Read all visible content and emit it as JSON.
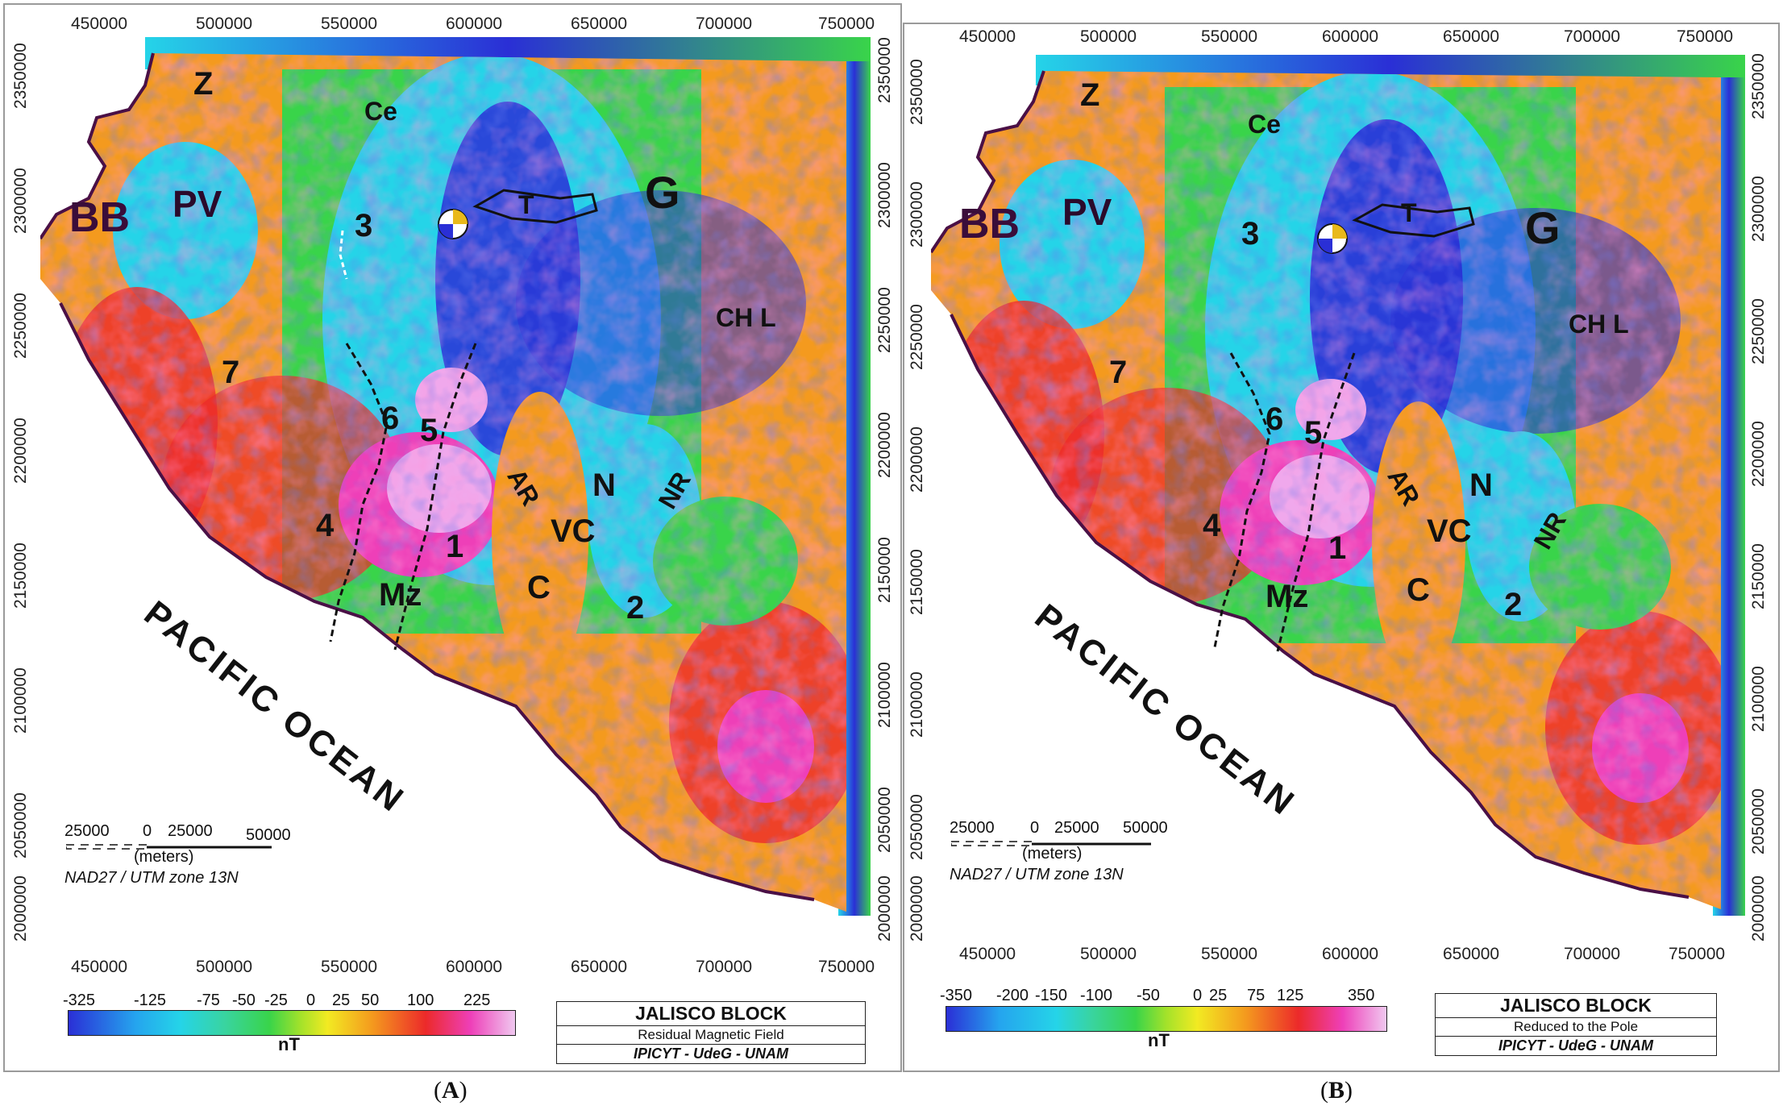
{
  "panels": [
    {
      "id": "A",
      "letter": "A",
      "x_ticks": [
        "450000",
        "500000",
        "550000",
        "600000",
        "650000",
        "700000",
        "750000"
      ],
      "y_ticks": [
        "2350000",
        "2300000",
        "2250000",
        "2200000",
        "2150000",
        "2100000",
        "2050000",
        "2000000"
      ],
      "labels": {
        "Z": "Z",
        "Ce": "Ce",
        "BB": "BB",
        "PV": "PV",
        "T": "T",
        "G": "G",
        "n3": "3",
        "CHL": "CH L",
        "n7": "7",
        "n6": "6",
        "n5": "5",
        "AR": "AR",
        "N": "N",
        "NR": "NR",
        "n4": "4",
        "VC": "VC",
        "n1": "1",
        "C": "C",
        "Mz": "Mz",
        "n2": "2"
      },
      "ocean": "PACIFIC  OCEAN",
      "scale": {
        "left": "25000",
        "zero": "0",
        "mid": "25000",
        "right": "50000",
        "unit": "(meters)",
        "datum": "NAD27 / UTM zone 13N"
      },
      "colorbar": {
        "ticks": [
          "-325",
          "-125",
          "-75",
          "-50",
          "-25",
          "0",
          "25",
          "50",
          "100",
          "225"
        ],
        "unit": "nT"
      },
      "title": {
        "line1": "JALISCO  BLOCK",
        "line2": "Residual  Magnetic  Field",
        "line3": "IPICYT - UdeG - UNAM"
      }
    },
    {
      "id": "B",
      "letter": "B",
      "x_ticks": [
        "450000",
        "500000",
        "550000",
        "600000",
        "650000",
        "700000",
        "750000"
      ],
      "y_ticks": [
        "2350000",
        "2300000",
        "2250000",
        "2200000",
        "2150000",
        "2100000",
        "2050000",
        "2000000"
      ],
      "labels": {
        "Z": "Z",
        "Ce": "Ce",
        "BB": "BB",
        "PV": "PV",
        "T": "T",
        "G": "G",
        "n3": "3",
        "CHL": "CH L",
        "n7": "7",
        "n6": "6",
        "n5": "5",
        "AR": "AR",
        "N": "N",
        "NR": "NR",
        "n4": "4",
        "VC": "VC",
        "n1": "1",
        "C": "C",
        "Mz": "Mz",
        "n2": "2"
      },
      "ocean": "PACIFIC  OCEAN",
      "scale": {
        "left": "25000",
        "zero": "0",
        "mid": "25000",
        "right": "50000",
        "unit": "(meters)",
        "datum": "NAD27 / UTM zone 13N"
      },
      "colorbar": {
        "ticks": [
          "-350",
          "-200",
          "-150",
          "-100",
          "-50",
          "0",
          "25",
          "75",
          "125",
          "350"
        ],
        "unit": "nT"
      },
      "title": {
        "line1": "JALISCO  BLOCK",
        "line2": "Reduced to the Pole",
        "line3": "IPICYT - UdeG - UNAM"
      }
    }
  ],
  "colors": {
    "blue": "#2a2fd6",
    "cyan": "#25d4e8",
    "green": "#39d44a",
    "yellow": "#f2ea22",
    "orange": "#f49a1e",
    "red": "#ec2a2a",
    "magenta": "#ee3fb8",
    "pink": "#f0a8ec",
    "coast": "#4a1046"
  }
}
